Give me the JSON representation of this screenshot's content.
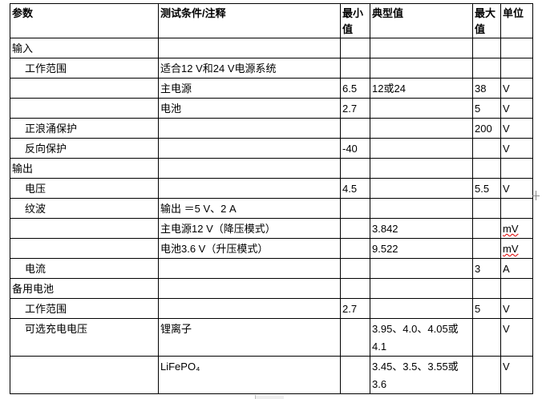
{
  "header": [
    "参数",
    "测试条件/注释",
    "最小值",
    "典型值",
    "最大值",
    "单位"
  ],
  "rows": [
    {
      "param": "输入",
      "indent": false,
      "cond": "",
      "min": "",
      "typ": "",
      "max": "",
      "unit": ""
    },
    {
      "param": "工作范围",
      "indent": true,
      "cond": "适合12 V和24 V电源系统",
      "min": "",
      "typ": "",
      "max": "",
      "unit": ""
    },
    {
      "param": "",
      "indent": true,
      "cond": "主电源",
      "min": "6.5",
      "typ": "12或24",
      "max": "38",
      "unit": "V"
    },
    {
      "param": "",
      "indent": true,
      "cond": "电池",
      "min": "2.7",
      "typ": "",
      "max": "5",
      "unit": "V"
    },
    {
      "param": "正浪涌保护",
      "indent": true,
      "cond": "",
      "min": "",
      "typ": "",
      "max": "200",
      "unit": "V"
    },
    {
      "param": "反向保护",
      "indent": true,
      "cond": "",
      "min": "-40",
      "typ": "",
      "max": "",
      "unit": "V"
    },
    {
      "param": "输出",
      "indent": false,
      "cond": "",
      "min": "",
      "typ": "",
      "max": "",
      "unit": ""
    },
    {
      "param": "电压",
      "indent": true,
      "cond": "",
      "min": "4.5",
      "typ": "",
      "max": "5.5",
      "unit": "V"
    },
    {
      "param": "纹波",
      "indent": true,
      "cond": "输出 ＝5 V、2 A",
      "min": "",
      "typ": "",
      "max": "",
      "unit": ""
    },
    {
      "param": "",
      "indent": true,
      "cond": "主电源12 V（降压模式）",
      "min": "",
      "typ": "3.842",
      "max": "",
      "unit": "mV"
    },
    {
      "param": "",
      "indent": true,
      "cond": "电池3.6 V（升压模式）",
      "min": "",
      "typ": "9.522",
      "max": "",
      "unit": "mV"
    },
    {
      "param": "电流",
      "indent": true,
      "cond": "",
      "min": "",
      "typ": "",
      "max": "3",
      "unit": "A"
    },
    {
      "param": "备用电池",
      "indent": false,
      "cond": "",
      "min": "",
      "typ": "",
      "max": "",
      "unit": ""
    },
    {
      "param": "工作范围",
      "indent": true,
      "cond": "",
      "min": "2.7",
      "typ": "",
      "max": "5",
      "unit": "V"
    },
    {
      "param": "可选充电电压",
      "indent": true,
      "cond": "锂离子",
      "min": "",
      "typ": "3.95、4.0、4.05或4.1",
      "max": "",
      "unit": "V"
    },
    {
      "param": "",
      "indent": true,
      "cond": "LiFePO₄",
      "min": "",
      "typ": "3.45、3.5、3.55或3.6",
      "max": "",
      "unit": "V"
    }
  ]
}
